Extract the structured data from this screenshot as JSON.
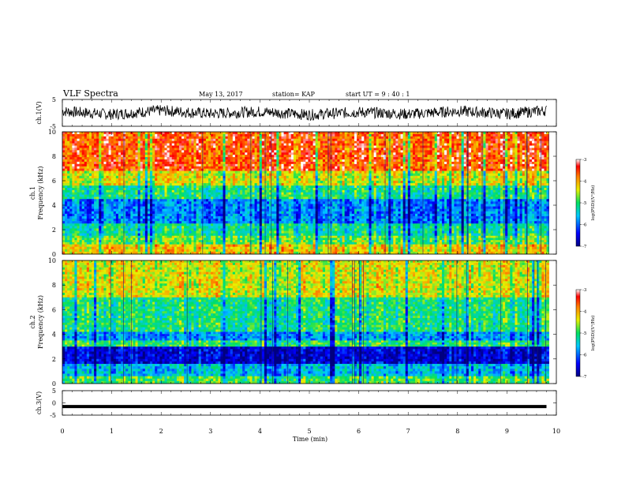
{
  "header": {
    "title": "VLF Spectra",
    "date": "May 13, 2017",
    "station": "station= KAP",
    "start": "start  UT =   9 : 40 : 1"
  },
  "chart_data": [
    {
      "type": "line",
      "panel": "ch1-waveform",
      "ylabel": "ch.1(V)",
      "ylim": [
        -5,
        5
      ],
      "yticks": [
        "5",
        "-5"
      ],
      "description_values": "noisy signal roughly between -3 and 3 V",
      "x": [
        0,
        1,
        2,
        3,
        4,
        5,
        6,
        7,
        8,
        9,
        9.8
      ],
      "values": [
        1,
        -1,
        1.5,
        -0.5,
        0.8,
        -1.2,
        0.5,
        -0.8,
        1.1,
        -0.6,
        1.5
      ]
    },
    {
      "type": "heatmap",
      "panel": "ch1-spectrogram",
      "ylabel": "ch.1",
      "ylabel2": "Frequency  (kHz)",
      "ylim": [
        0,
        10
      ],
      "yticks": [
        "0",
        "2",
        "4",
        "6",
        "8",
        "10"
      ],
      "colorbar": {
        "label": "log(PSD)(V²/Hz)",
        "range": [
          -7,
          -3
        ],
        "ticks": [
          "-3",
          "-4",
          "-5",
          "-6",
          "-7"
        ]
      },
      "bands": [
        {
          "from": 10,
          "to": 6.8,
          "level": -3.6
        },
        {
          "from": 6.8,
          "to": 5.6,
          "level": -4.4
        },
        {
          "from": 5.6,
          "to": 4.5,
          "level": -5.1
        },
        {
          "from": 4.5,
          "to": 2.5,
          "level": -5.9
        },
        {
          "from": 2.5,
          "to": 1.5,
          "level": -5.2
        },
        {
          "from": 1.5,
          "to": 0.8,
          "level": -4.8
        },
        {
          "from": 0.8,
          "to": 0,
          "level": -4.2
        }
      ]
    },
    {
      "type": "heatmap",
      "panel": "ch2-spectrogram",
      "ylabel": "ch.2",
      "ylabel2": "Frequency  (kHz)",
      "ylim": [
        0,
        10
      ],
      "yticks": [
        "0",
        "2",
        "4",
        "6",
        "8",
        "10"
      ],
      "colorbar": {
        "label": "log(PSD)(V²/Hz)",
        "range": [
          -7,
          -3
        ],
        "ticks": [
          "-3",
          "-4",
          "-5",
          "-6",
          "-7"
        ]
      },
      "bands": [
        {
          "from": 10,
          "to": 7,
          "level": -4.4
        },
        {
          "from": 7,
          "to": 4.2,
          "level": -5.1
        },
        {
          "from": 4.2,
          "to": 3.5,
          "level": -5.8
        },
        {
          "from": 3.5,
          "to": 3.0,
          "level": -5.0
        },
        {
          "from": 3.0,
          "to": 1.6,
          "level": -6.6
        },
        {
          "from": 1.6,
          "to": 0.6,
          "level": -5.6
        },
        {
          "from": 0.6,
          "to": 0,
          "level": -4.9
        }
      ]
    },
    {
      "type": "line",
      "panel": "ch3-waveform",
      "ylabel": "ch.3(V)",
      "ylim": [
        -5,
        5
      ],
      "yticks": [
        "5",
        "0",
        "-5"
      ],
      "x": [
        0,
        9.8
      ],
      "values": [
        -1.5,
        -1.5
      ]
    }
  ],
  "xaxis": {
    "label": "Time  (min)",
    "range": [
      0,
      10
    ],
    "ticks": [
      "0",
      "1",
      "2",
      "3",
      "4",
      "5",
      "6",
      "7",
      "8",
      "9",
      "10"
    ]
  }
}
